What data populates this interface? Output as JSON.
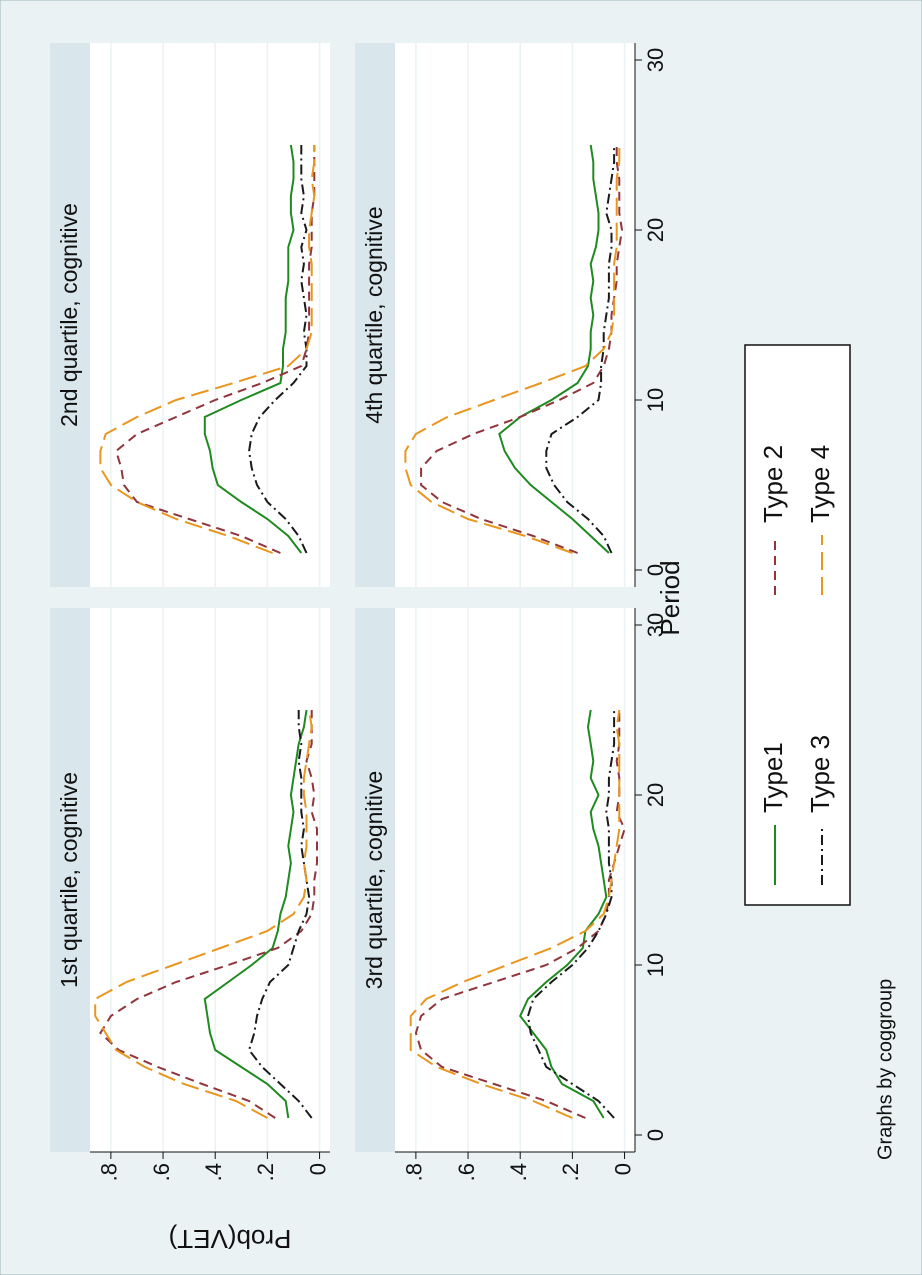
{
  "xlabel": "Period",
  "ylabel": "Prob(VET)",
  "note": "Graphs by coggroup",
  "chart_data": [
    {
      "type": "line",
      "title": "1st quartile, cognitive",
      "x": [
        1,
        2,
        3,
        4,
        5,
        6,
        7,
        8,
        9,
        10,
        11,
        12,
        13,
        14,
        15,
        16,
        17,
        18,
        19,
        20,
        21,
        22,
        23,
        24,
        25
      ],
      "xlim": [
        -1,
        31
      ],
      "ylim": [
        -0.04,
        0.88
      ],
      "yticks": [
        {
          "value": 0,
          "label": "0"
        },
        {
          "value": 0.2,
          "label": ".2"
        },
        {
          "value": 0.4,
          "label": ".4"
        },
        {
          "value": 0.6,
          "label": ".6"
        },
        {
          "value": 0.8,
          "label": ".8"
        }
      ],
      "series": [
        {
          "name": "Type1",
          "color": "#1f8a1f",
          "values": [
            0.12,
            0.13,
            0.2,
            0.3,
            0.4,
            0.42,
            0.43,
            0.44,
            0.35,
            0.26,
            0.18,
            0.16,
            0.15,
            0.13,
            0.12,
            0.11,
            0.12,
            0.11,
            0.1,
            0.11,
            0.1,
            0.09,
            0.08,
            0.06,
            0.05
          ]
        },
        {
          "name": "Type 2",
          "color": "#90353b",
          "values": [
            0.17,
            0.27,
            0.45,
            0.62,
            0.77,
            0.84,
            0.8,
            0.7,
            0.55,
            0.35,
            0.16,
            0.07,
            0.03,
            0.02,
            0.02,
            0.01,
            0.01,
            0.01,
            0.03,
            0.02,
            0.03,
            0.05,
            0.03,
            0.03,
            0.03
          ]
        },
        {
          "name": "Type 3",
          "color": "#1a1a1a",
          "values": [
            0.03,
            0.08,
            0.15,
            0.22,
            0.27,
            0.25,
            0.24,
            0.22,
            0.19,
            0.12,
            0.1,
            0.08,
            0.05,
            0.04,
            0.05,
            0.06,
            0.07,
            0.06,
            0.07,
            0.07,
            0.07,
            0.08,
            0.07,
            0.08,
            0.08
          ]
        },
        {
          "name": "Type 4",
          "color": "#e8961e",
          "values": [
            0.2,
            0.32,
            0.52,
            0.67,
            0.78,
            0.82,
            0.86,
            0.86,
            0.74,
            0.56,
            0.38,
            0.2,
            0.1,
            0.06,
            0.05,
            0.06,
            0.05,
            0.05,
            0.05,
            0.06,
            0.06,
            0.05,
            0.04,
            0.03,
            0.04
          ]
        }
      ]
    },
    {
      "type": "line",
      "title": "2nd quartile, cognitive",
      "x": [
        1,
        2,
        3,
        4,
        5,
        6,
        7,
        8,
        9,
        10,
        11,
        12,
        13,
        14,
        15,
        16,
        17,
        18,
        19,
        20,
        21,
        22,
        23,
        24,
        25
      ],
      "xlim": [
        -1,
        31
      ],
      "ylim": [
        -0.04,
        0.88
      ],
      "yticks": [
        0,
        0.2,
        0.4,
        0.6,
        0.8
      ],
      "series": [
        {
          "name": "Type1",
          "color": "#1f8a1f",
          "values": [
            0.07,
            0.12,
            0.2,
            0.3,
            0.39,
            0.41,
            0.42,
            0.44,
            0.44,
            0.3,
            0.15,
            0.14,
            0.14,
            0.13,
            0.13,
            0.13,
            0.12,
            0.12,
            0.12,
            0.1,
            0.11,
            0.11,
            0.1,
            0.1,
            0.11
          ]
        },
        {
          "name": "Type 2",
          "color": "#90353b",
          "values": [
            0.15,
            0.3,
            0.5,
            0.7,
            0.75,
            0.76,
            0.78,
            0.7,
            0.55,
            0.4,
            0.22,
            0.07,
            0.05,
            0.04,
            0.04,
            0.04,
            0.04,
            0.04,
            0.03,
            0.03,
            0.03,
            0.02,
            0.02,
            0.02,
            0.02
          ]
        },
        {
          "name": "Type 3",
          "color": "#1a1a1a",
          "values": [
            0.05,
            0.08,
            0.13,
            0.2,
            0.24,
            0.26,
            0.27,
            0.26,
            0.23,
            0.17,
            0.1,
            0.05,
            0.05,
            0.06,
            0.05,
            0.06,
            0.07,
            0.06,
            0.07,
            0.05,
            0.07,
            0.06,
            0.07,
            0.07,
            0.07
          ]
        },
        {
          "name": "Type 4",
          "color": "#e8961e",
          "values": [
            0.18,
            0.35,
            0.55,
            0.7,
            0.8,
            0.84,
            0.84,
            0.82,
            0.7,
            0.55,
            0.33,
            0.12,
            0.05,
            0.03,
            0.03,
            0.03,
            0.03,
            0.03,
            0.04,
            0.04,
            0.03,
            0.02,
            0.03,
            0.02,
            0.02
          ]
        }
      ]
    },
    {
      "type": "line",
      "title": "3rd quartile, cognitive",
      "x": [
        1,
        2,
        3,
        4,
        5,
        6,
        7,
        8,
        9,
        10,
        11,
        12,
        13,
        14,
        15,
        16,
        17,
        18,
        19,
        20,
        21,
        22,
        23,
        24,
        25
      ],
      "xlim": [
        -1,
        31
      ],
      "xticks": [
        0,
        10,
        20,
        30
      ],
      "ylim": [
        -0.04,
        0.88
      ],
      "yticks": [
        {
          "value": 0,
          "label": "0"
        },
        {
          "value": 0.2,
          "label": ".2"
        },
        {
          "value": 0.4,
          "label": ".4"
        },
        {
          "value": 0.6,
          "label": ".6"
        },
        {
          "value": 0.8,
          "label": ".8"
        }
      ],
      "series": [
        {
          "name": "Type1",
          "color": "#1f8a1f",
          "values": [
            0.08,
            0.12,
            0.24,
            0.28,
            0.3,
            0.35,
            0.4,
            0.37,
            0.3,
            0.22,
            0.16,
            0.15,
            0.1,
            0.07,
            0.08,
            0.09,
            0.1,
            0.12,
            0.13,
            0.1,
            0.13,
            0.12,
            0.13,
            0.14,
            0.13
          ]
        },
        {
          "name": "Type 2",
          "color": "#90353b",
          "values": [
            0.15,
            0.3,
            0.5,
            0.7,
            0.78,
            0.8,
            0.78,
            0.7,
            0.5,
            0.3,
            0.18,
            0.1,
            0.07,
            0.06,
            0.06,
            0.04,
            0.02,
            0,
            0.03,
            0.02,
            0.02,
            0.03,
            0.02,
            0.02,
            0.02
          ]
        },
        {
          "name": "Type 3",
          "color": "#1a1a1a",
          "values": [
            0.04,
            0.1,
            0.2,
            0.3,
            0.33,
            0.36,
            0.37,
            0.35,
            0.28,
            0.2,
            0.14,
            0.1,
            0.07,
            0.05,
            0.05,
            0.06,
            0.06,
            0.06,
            0.07,
            0.06,
            0.06,
            0.05,
            0.04,
            0.04,
            0.04
          ]
        },
        {
          "name": "Type 4",
          "color": "#e8961e",
          "values": [
            0.2,
            0.35,
            0.55,
            0.72,
            0.82,
            0.82,
            0.82,
            0.76,
            0.62,
            0.45,
            0.28,
            0.15,
            0.08,
            0.06,
            0.05,
            0.04,
            0.03,
            0.02,
            0.02,
            0.02,
            0.02,
            0.02,
            0.02,
            0.03,
            0.02
          ]
        }
      ]
    },
    {
      "type": "line",
      "title": "4th quartile, cognitive",
      "x": [
        1,
        2,
        3,
        4,
        5,
        6,
        7,
        8,
        9,
        10,
        11,
        12,
        13,
        14,
        15,
        16,
        17,
        18,
        19,
        20,
        21,
        22,
        23,
        24,
        25
      ],
      "xlim": [
        -1,
        31
      ],
      "xticks": [
        0,
        10,
        20,
        30
      ],
      "ylim": [
        -0.04,
        0.88
      ],
      "yticks": [
        0,
        0.2,
        0.4,
        0.6,
        0.8
      ],
      "series": [
        {
          "name": "Type1",
          "color": "#1f8a1f",
          "values": [
            0.06,
            0.13,
            0.2,
            0.28,
            0.36,
            0.42,
            0.46,
            0.48,
            0.4,
            0.28,
            0.18,
            0.14,
            0.13,
            0.13,
            0.12,
            0.13,
            0.12,
            0.13,
            0.11,
            0.1,
            0.1,
            0.11,
            0.12,
            0.12,
            0.13
          ]
        },
        {
          "name": "Type 2",
          "color": "#90353b",
          "values": [
            0.18,
            0.35,
            0.55,
            0.7,
            0.78,
            0.78,
            0.72,
            0.58,
            0.4,
            0.25,
            0.12,
            0.08,
            0.06,
            0.05,
            0.05,
            0.04,
            0.03,
            0.03,
            0.02,
            0.01,
            0.02,
            0.02,
            0.02,
            0.03,
            0.03
          ]
        },
        {
          "name": "Type 3",
          "color": "#1a1a1a",
          "values": [
            0.05,
            0.08,
            0.14,
            0.22,
            0.27,
            0.3,
            0.3,
            0.28,
            0.18,
            0.1,
            0.09,
            0.09,
            0.08,
            0.08,
            0.07,
            0.06,
            0.06,
            0.06,
            0.05,
            0.05,
            0.07,
            0.06,
            0.05,
            0.04,
            0.04
          ]
        },
        {
          "name": "Type 4",
          "color": "#e8961e",
          "values": [
            0.2,
            0.38,
            0.6,
            0.74,
            0.82,
            0.84,
            0.84,
            0.8,
            0.68,
            0.5,
            0.32,
            0.15,
            0.08,
            0.05,
            0.04,
            0.04,
            0.04,
            0.04,
            0.03,
            0.03,
            0.03,
            0.03,
            0.03,
            0.02,
            0.02
          ]
        }
      ]
    }
  ]
}
